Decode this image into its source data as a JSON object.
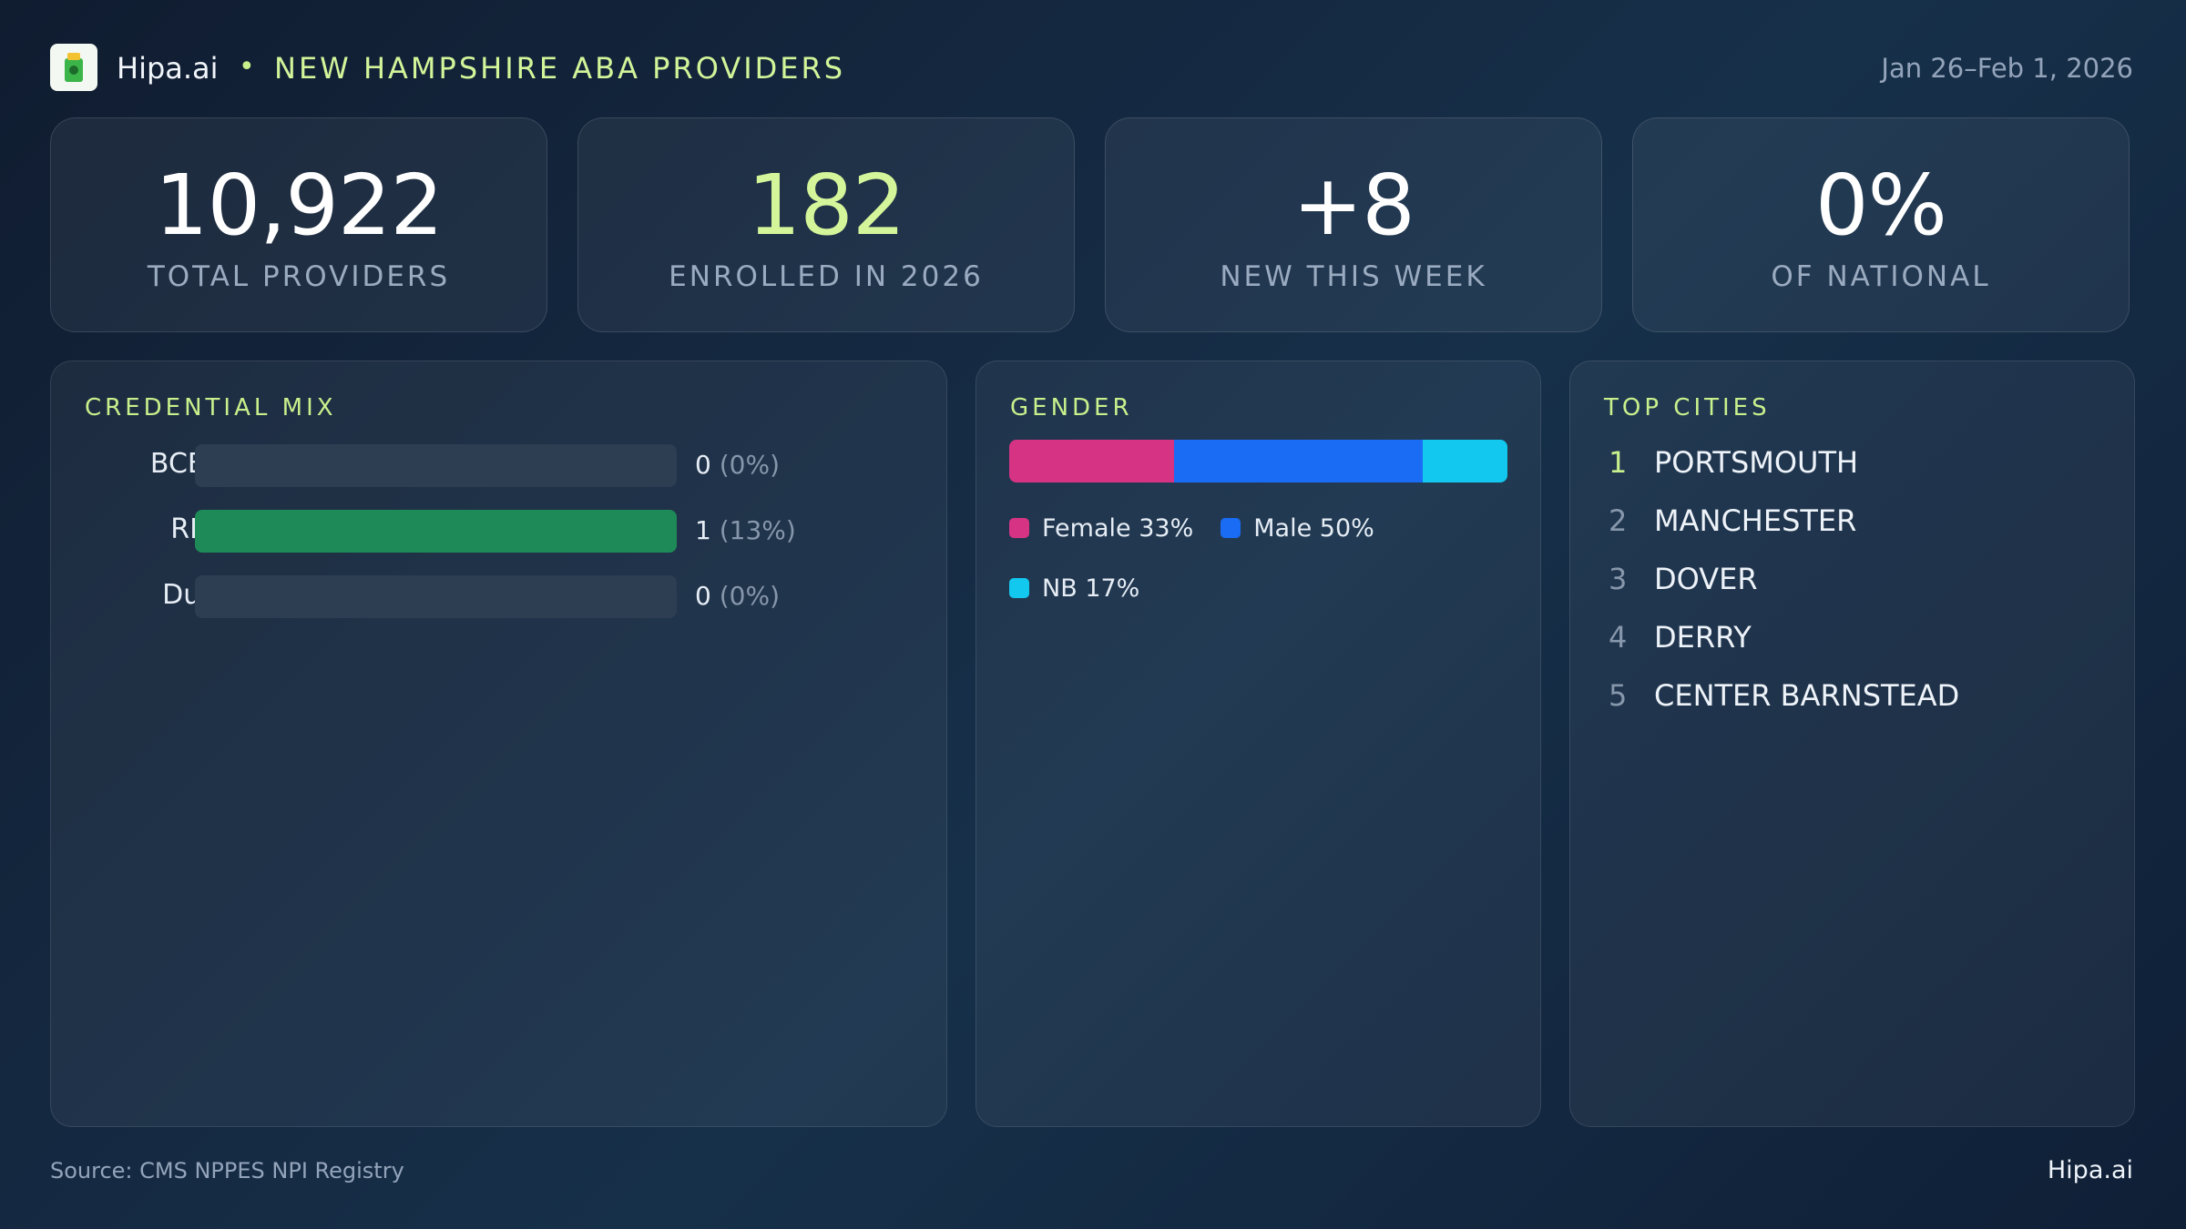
{
  "header": {
    "brand": "Hipa.ai",
    "title": "NEW HAMPSHIRE ABA PROVIDERS",
    "date": "Jan 26–Feb 1, 2026"
  },
  "kpis": [
    {
      "value": "10,922",
      "label": "TOTAL PROVIDERS"
    },
    {
      "value": "182",
      "label": "ENROLLED IN 2026"
    },
    {
      "value": "+8",
      "label": "NEW THIS WEEK"
    },
    {
      "value": "0%",
      "label": "OF NATIONAL"
    }
  ],
  "credential_mix": {
    "title": "CREDENTIAL MIX",
    "categories": [
      "BCBA",
      "RBT",
      "Dual"
    ],
    "values": [
      0,
      1,
      0
    ],
    "share_labels": [
      "(0%)",
      "(13%)",
      "(0%)"
    ],
    "xlim": [
      0,
      1
    ],
    "color": "#1e8a57"
  },
  "gender": {
    "title": "GENDER",
    "categories": [
      "Female",
      "Male",
      "NB"
    ],
    "values": [
      33,
      50,
      17
    ],
    "value_labels": [
      "33%",
      "50%",
      "17%"
    ],
    "colors": [
      "#d63384",
      "#1a6cf5",
      "#12c8ee"
    ],
    "xlim": [
      0,
      100
    ]
  },
  "top_cities": {
    "title": "TOP CITIES",
    "items": [
      {
        "rank": 1,
        "name": "PORTSMOUTH"
      },
      {
        "rank": 2,
        "name": "MANCHESTER"
      },
      {
        "rank": 3,
        "name": "DOVER"
      },
      {
        "rank": 4,
        "name": "DERRY"
      },
      {
        "rank": 5,
        "name": "CENTER BARNSTEAD"
      }
    ]
  },
  "footer": {
    "source": "Source: CMS NPPES NPI Registry",
    "brand": "Hipa.ai"
  }
}
